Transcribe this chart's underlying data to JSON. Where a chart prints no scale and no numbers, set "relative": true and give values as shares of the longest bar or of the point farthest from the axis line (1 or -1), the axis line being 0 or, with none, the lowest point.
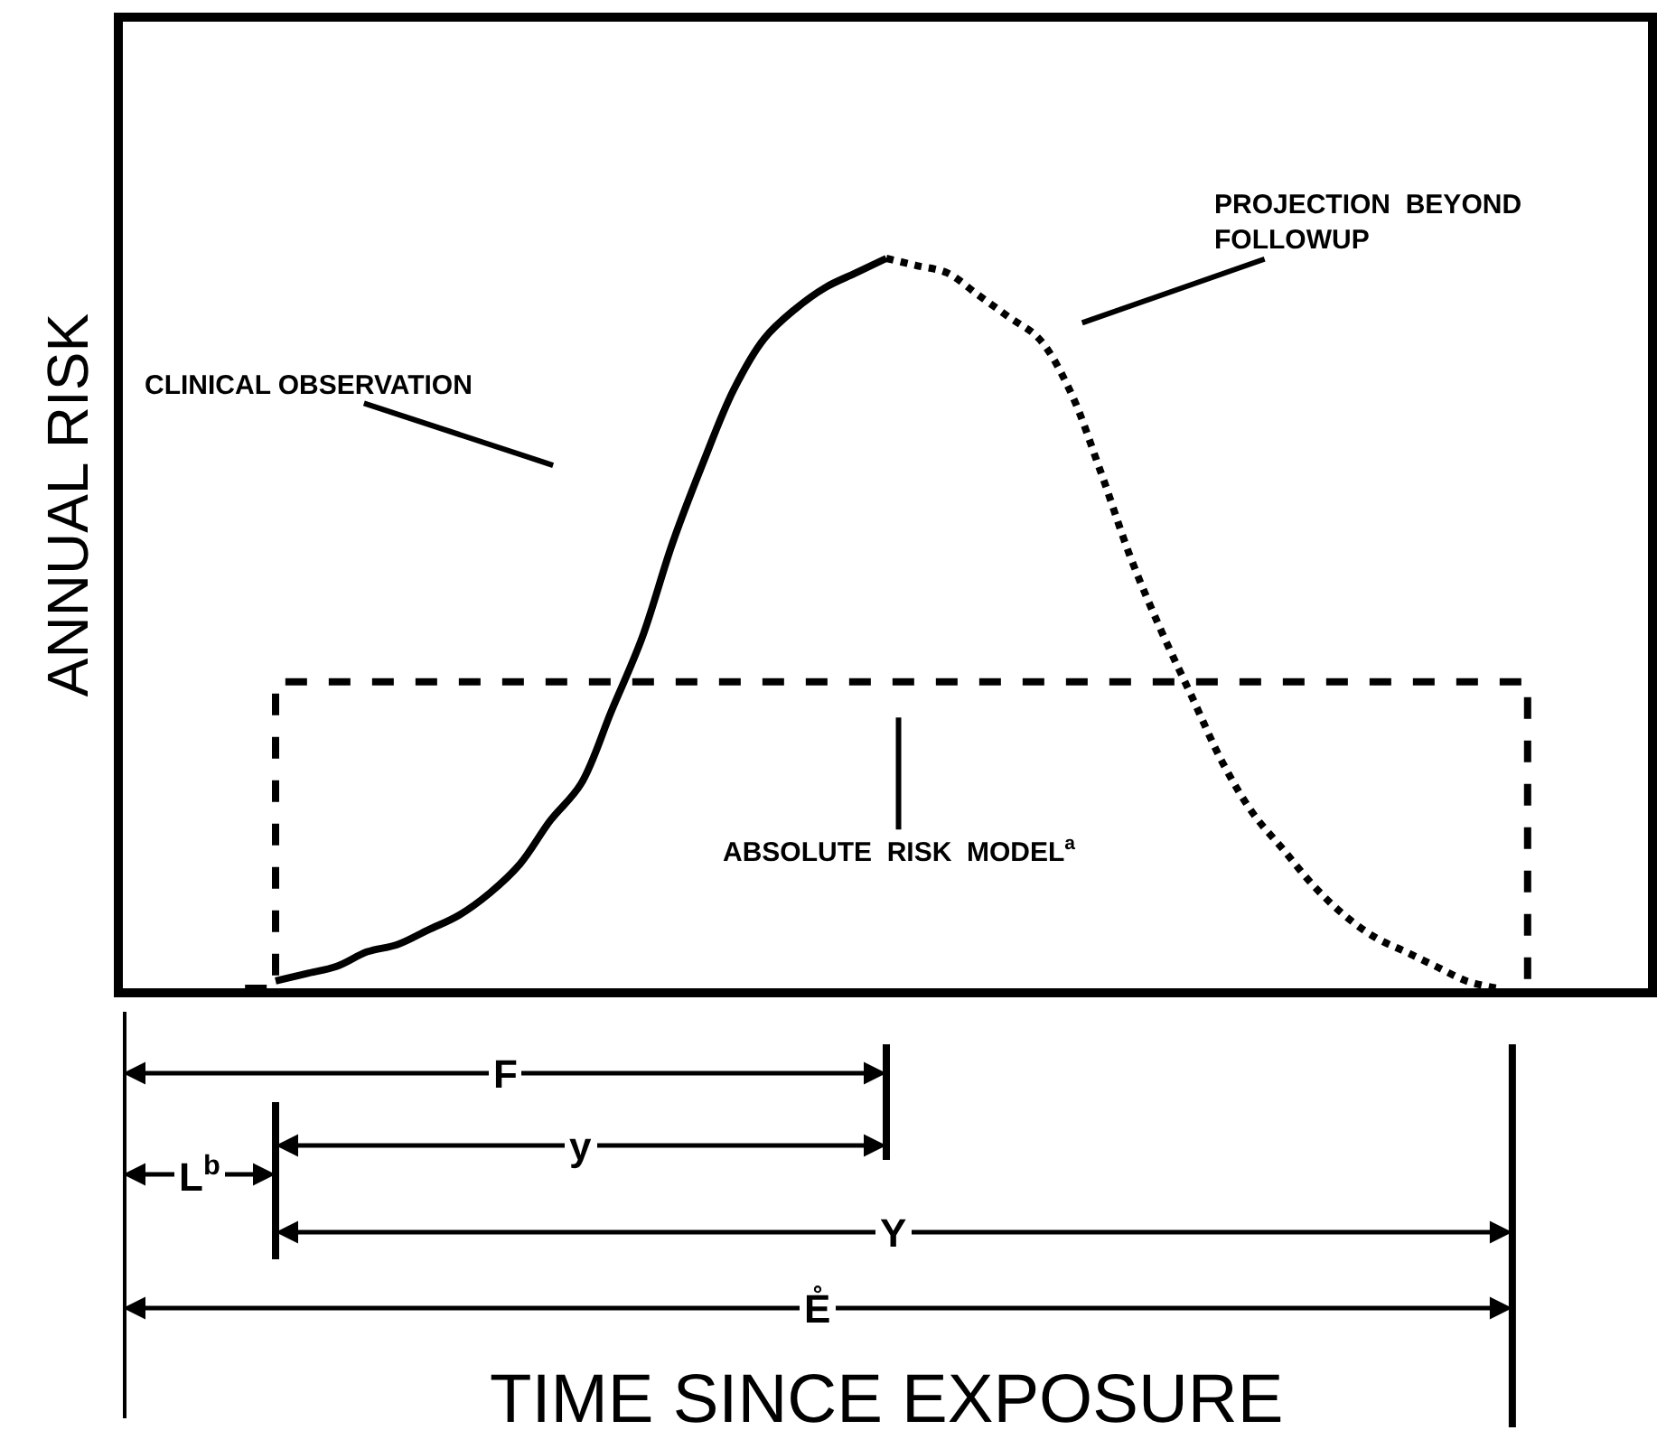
{
  "chart_data": {
    "type": "line",
    "relative": true,
    "ylabel": "ANNUAL RISK",
    "categories": [
      null,
      null,
      null,
      null,
      null,
      null,
      null,
      null,
      null,
      null,
      null,
      null,
      null,
      null,
      null,
      null,
      null,
      null,
      null,
      null,
      null,
      null,
      null,
      null,
      null,
      null,
      null,
      null,
      null,
      null,
      null,
      null,
      null,
      null,
      null,
      null,
      null,
      null,
      null,
      null,
      null,
      null,
      null,
      null,
      null,
      null,
      null,
      null,
      null,
      null
    ],
    "series": [
      {
        "line_style": "solid",
        "color": "#000000",
        "values": [
          null,
          null,
          null,
          null,
          null,
          0.01,
          0.02,
          0.03,
          0.05,
          0.06,
          0.08,
          0.1,
          0.13,
          0.17,
          0.23,
          0.28,
          0.38,
          0.48,
          0.61,
          0.72,
          0.82,
          0.89,
          0.93,
          0.96,
          0.98,
          1,
          null,
          null,
          null,
          null,
          null,
          null,
          null,
          null,
          null,
          null,
          null,
          null,
          null,
          null,
          null,
          null,
          null,
          null,
          null,
          null,
          null,
          null,
          null,
          null
        ]
      },
      {
        "line_style": "dotted",
        "color": "#000000",
        "values": [
          null,
          null,
          null,
          null,
          null,
          null,
          null,
          null,
          null,
          null,
          null,
          null,
          null,
          null,
          null,
          null,
          null,
          null,
          null,
          null,
          null,
          null,
          null,
          null,
          null,
          1,
          0.99,
          0.98,
          0.95,
          0.92,
          0.89,
          0.82,
          0.71,
          0.59,
          0.49,
          0.4,
          0.31,
          0.24,
          0.19,
          0.14,
          0.1,
          0.07,
          0.05,
          0.03,
          0.01,
          0,
          null,
          null,
          null,
          null
        ]
      },
      {
        "type": "step",
        "line_style": "dashed",
        "color": "#000000",
        "values": [
          null,
          null,
          null,
          null,
          0,
          0.42,
          0.42,
          0.42,
          0.42,
          0.42,
          0.42,
          0.42,
          0.42,
          0.42,
          0.42,
          0.42,
          0.42,
          0.42,
          0.42,
          0.42,
          0.42,
          0.42,
          0.42,
          0.42,
          0.42,
          0.42,
          0.42,
          0.42,
          0.42,
          0.42,
          0.42,
          0.42,
          0.42,
          0.42,
          0.42,
          0.42,
          0.42,
          0.42,
          0.42,
          0.42,
          0.42,
          0.42,
          0.42,
          0.42,
          0.42,
          0.42,
          0,
          null,
          null,
          null
        ]
      }
    ],
    "annotations": [
      "CLINICAL OBSERVATION",
      "PROJECTION  BEYOND\nFOLLOWUP",
      "ABSOLUTE  RISK  MODEL$^{a}$",
      "F",
      "y",
      "L$^{b}$",
      "Y",
      "E̊",
      "TIME SINCE EXPOSURE"
    ]
  }
}
